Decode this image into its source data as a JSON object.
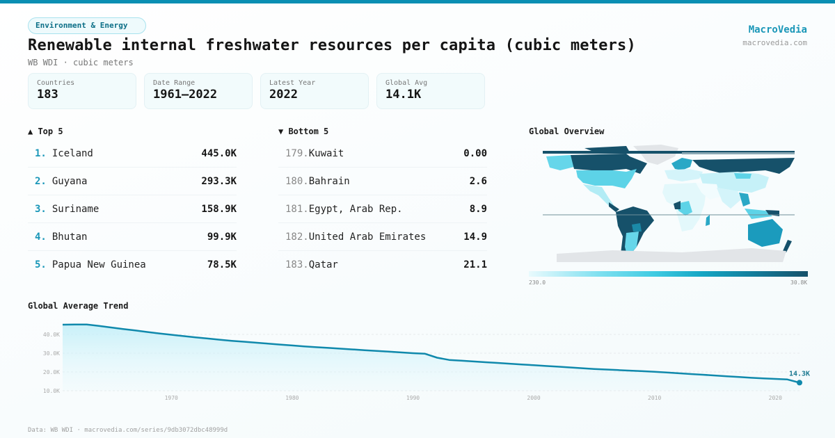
{
  "header": {
    "tag": "Environment & Energy",
    "title": "Renewable internal freshwater resources per capita (cubic meters)",
    "subtitle": "WB WDI · cubic meters",
    "brand_name": "MacroVedia",
    "brand_url": "macrovedia.com"
  },
  "stats": [
    {
      "label": "Countries",
      "value": "183"
    },
    {
      "label": "Date Range",
      "value": "1961–2022"
    },
    {
      "label": "Latest Year",
      "value": "2022"
    },
    {
      "label": "Global Avg",
      "value": "14.1K"
    }
  ],
  "top5": {
    "heading": "▲ Top 5",
    "items": [
      {
        "rank": "1.",
        "name": "Iceland",
        "value": "445.0K"
      },
      {
        "rank": "2.",
        "name": "Guyana",
        "value": "293.3K"
      },
      {
        "rank": "3.",
        "name": "Suriname",
        "value": "158.9K"
      },
      {
        "rank": "4.",
        "name": "Bhutan",
        "value": "99.9K"
      },
      {
        "rank": "5.",
        "name": "Papua New Guinea",
        "value": "78.5K"
      }
    ]
  },
  "bottom5": {
    "heading": "▼ Bottom 5",
    "items": [
      {
        "rank": "179.",
        "name": "Kuwait",
        "value": "0.00"
      },
      {
        "rank": "180.",
        "name": "Bahrain",
        "value": "2.6"
      },
      {
        "rank": "181.",
        "name": "Egypt, Arab Rep.",
        "value": "8.9"
      },
      {
        "rank": "182.",
        "name": "United Arab Emirates",
        "value": "14.9"
      },
      {
        "rank": "183.",
        "name": "Qatar",
        "value": "21.1"
      }
    ]
  },
  "map": {
    "heading": "Global Overview",
    "legend_min": "230.0",
    "legend_max": "30.8K",
    "colors": {
      "low": "#e9fafd",
      "mid": "#3fcbe2",
      "high": "#16516a",
      "nodata": "#e2e5e8"
    }
  },
  "trend": {
    "heading": "Global Average Trend",
    "last_label": "14.3K"
  },
  "footer": {
    "source": "Data: WB WDI · macrovedia.com/series/9db3072dbc48999d"
  },
  "colors": {
    "accent": "#0a8fb3",
    "line": "#1089ac",
    "brand": "#1a97b8"
  },
  "chart_data": {
    "type": "area",
    "title": "Global Average Trend",
    "xlabel": "",
    "ylabel": "",
    "x_ticks": [
      "1970",
      "1980",
      "1990",
      "2000",
      "2010",
      "2020"
    ],
    "y_ticks": [
      "10.0K",
      "20.0K",
      "30.0K",
      "40.0K"
    ],
    "ylim": [
      10000,
      46000
    ],
    "xlim": [
      1961,
      2022
    ],
    "grid": true,
    "annotation": {
      "x": 2022,
      "label": "14.3K"
    },
    "x": [
      1961,
      1962,
      1963,
      1964,
      1965,
      1966,
      1967,
      1968,
      1969,
      1970,
      1971,
      1972,
      1973,
      1974,
      1975,
      1976,
      1977,
      1978,
      1979,
      1980,
      1981,
      1982,
      1983,
      1984,
      1985,
      1986,
      1987,
      1988,
      1989,
      1990,
      1991,
      1992,
      1993,
      1994,
      1995,
      1996,
      1997,
      1998,
      1999,
      2000,
      2001,
      2002,
      2003,
      2004,
      2005,
      2006,
      2007,
      2008,
      2009,
      2010,
      2011,
      2012,
      2013,
      2014,
      2015,
      2016,
      2017,
      2018,
      2019,
      2020,
      2021,
      2022
    ],
    "series": [
      {
        "name": "Global Average",
        "values": [
          45200,
          45300,
          45300,
          44500,
          43700,
          42900,
          42100,
          41300,
          40500,
          39800,
          39100,
          38400,
          37800,
          37200,
          36600,
          36100,
          35600,
          35100,
          34600,
          34100,
          33600,
          33200,
          32800,
          32400,
          32000,
          31600,
          31200,
          30800,
          30400,
          30000,
          29700,
          27600,
          26400,
          26000,
          25600,
          25200,
          24800,
          24400,
          24000,
          23600,
          23200,
          22800,
          22400,
          22000,
          21600,
          21300,
          21000,
          20700,
          20400,
          20100,
          19700,
          19300,
          18900,
          18500,
          18100,
          17700,
          17300,
          16900,
          16600,
          16300,
          16000,
          14300
        ]
      }
    ]
  }
}
